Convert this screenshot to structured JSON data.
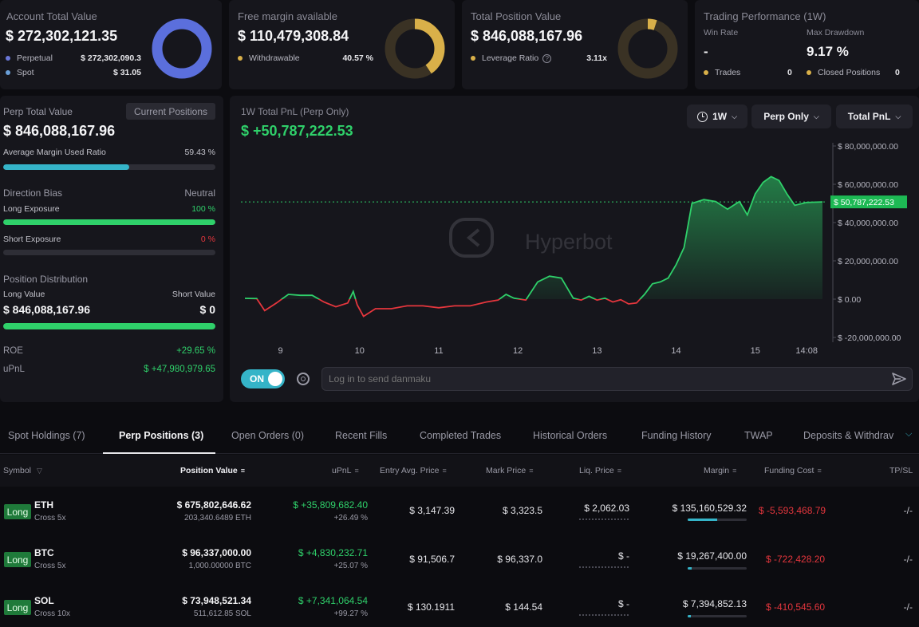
{
  "cards": {
    "account": {
      "title": "Account Total Value",
      "value": "$ 272,302,121.35",
      "rows": [
        {
          "label": "Perpetual",
          "value": "$ 272,302,090.3",
          "color": "#6a77d8"
        },
        {
          "label": "Spot",
          "value": "$ 31.05",
          "color": "#6a9fd8"
        }
      ],
      "donut_color": "#5b6fdc"
    },
    "margin": {
      "title": "Free margin available",
      "value": "$ 110,479,308.84",
      "rows": [
        {
          "label": "Withdrawable",
          "value": "40.57 %",
          "color": "#d9b049"
        }
      ],
      "withdrawable_fraction": 0.4057,
      "donut_color": "#d9b049"
    },
    "position": {
      "title": "Total Position Value",
      "value": "$ 846,088,167.96",
      "rows": [
        {
          "label": "Leverage Ratio",
          "value": "3.11x",
          "color": "#d9b049"
        }
      ],
      "help_icon": "help-circle-icon",
      "fill_fraction": 0.05,
      "donut_color": "#d9b049"
    },
    "performance": {
      "title": "Trading Performance (1W)",
      "win_rate_label": "Win Rate",
      "win_rate_value": "-",
      "drawdown_label": "Max Drawdown",
      "drawdown_value": "9.17 %",
      "trades_label": "Trades",
      "trades_value": "0",
      "closed_label": "Closed Positions",
      "closed_value": "0"
    }
  },
  "left_panel": {
    "perp_total_label": "Perp Total Value",
    "current_positions_button": "Current Positions",
    "perp_total_value": "$ 846,088,167.96",
    "avg_margin_label": "Average Margin Used Ratio",
    "avg_margin_value": "59.43 %",
    "avg_margin_fraction": 0.5943,
    "direction_bias_label": "Direction Bias",
    "direction_bias_value": "Neutral",
    "long_exposure_label": "Long Exposure",
    "long_exposure_value": "100 %",
    "long_exposure_fraction": 1.0,
    "short_exposure_label": "Short Exposure",
    "short_exposure_value": "0 %",
    "short_exposure_fraction": 0.0,
    "distribution_label": "Position Distribution",
    "long_value_label": "Long Value",
    "short_value_label": "Short Value",
    "long_value": "$ 846,088,167.96",
    "short_value": "$ 0",
    "distribution_long_fraction": 1.0,
    "roe_label": "ROE",
    "roe_value": "+29.65 %",
    "upnl_label": "uPnL",
    "upnl_value": "$ +47,980,979.65"
  },
  "chart_panel": {
    "title": "1W Total PnL (Perp Only)",
    "value": "$ +50,787,222.53",
    "dropdowns": {
      "period": "1W",
      "scope": "Perp Only",
      "metric": "Total PnL"
    },
    "clock_icon": "clock-icon",
    "watermark": "Hyperbot",
    "toggle_label": "ON",
    "settings_icon": "settings-icon",
    "danmaku_placeholder": "Log in to send danmaku",
    "send_icon": "send-icon"
  },
  "chart_data": {
    "type": "area",
    "title": "1W Total PnL (Perp Only)",
    "xlabel": "",
    "ylabel": "",
    "ylim": [
      -20000000,
      80000000
    ],
    "y_ticks": [
      "$ 80,000,000.00",
      "$ 60,000,000.00",
      "$ 40,000,000.00",
      "$ 20,000,000.00",
      "$ 0.00",
      "$ -20,000,000.00"
    ],
    "y_tick_values": [
      80000000,
      60000000,
      40000000,
      20000000,
      0,
      -20000000
    ],
    "x_ticks": [
      "9",
      "10",
      "11",
      "12",
      "13",
      "14",
      "15",
      "14:08"
    ],
    "x_tick_values": [
      9,
      10,
      11,
      12,
      13,
      14,
      15,
      15.65
    ],
    "xlim": [
      8.5,
      15.9
    ],
    "current_label": "$ 50,787,222.53",
    "current_value": 50787222.53,
    "positive_color": "#2fd06a",
    "negative_color": "#e5363d",
    "grid": false,
    "x": [
      8.55,
      8.7,
      8.8,
      8.95,
      9.1,
      9.25,
      9.4,
      9.55,
      9.7,
      9.85,
      9.92,
      9.97,
      10.05,
      10.2,
      10.4,
      10.6,
      10.8,
      11.0,
      11.2,
      11.4,
      11.6,
      11.75,
      11.85,
      11.95,
      12.1,
      12.25,
      12.4,
      12.55,
      12.7,
      12.8,
      12.9,
      13.0,
      13.1,
      13.2,
      13.3,
      13.4,
      13.5,
      13.6,
      13.7,
      13.8,
      13.9,
      14.0,
      14.1,
      14.2,
      14.35,
      14.5,
      14.65,
      14.8,
      14.9,
      15.0,
      15.1,
      15.2,
      15.3,
      15.4,
      15.5,
      15.65,
      15.85
    ],
    "y": [
      0.4,
      0.3,
      -6.0,
      -2.0,
      2.5,
      2.0,
      2.0,
      -1.5,
      -4.0,
      -2.0,
      4.0,
      -3.0,
      -9.0,
      -5.0,
      -5.0,
      -3.5,
      -3.5,
      -4.5,
      -3.5,
      -3.5,
      -1.5,
      -0.5,
      2.5,
      0.5,
      -0.5,
      9.0,
      12.0,
      11.0,
      0.5,
      -0.5,
      1.5,
      -0.5,
      0.5,
      -1.5,
      -0.3,
      -2.5,
      -2.0,
      2.5,
      8.0,
      9.0,
      11.0,
      18.0,
      27.0,
      50.0,
      52.0,
      51.0,
      47.0,
      51.0,
      44.0,
      55.0,
      61.0,
      64.0,
      62.0,
      55.0,
      49.0,
      50.5,
      50.8
    ]
  },
  "tabs": [
    {
      "label": "Spot Holdings (7)",
      "active": false
    },
    {
      "label": "Perp Positions (3)",
      "active": true
    },
    {
      "label": "Open Orders (0)",
      "active": false
    },
    {
      "label": "Recent Fills",
      "active": false
    },
    {
      "label": "Completed Trades",
      "active": false
    },
    {
      "label": "Historical Orders",
      "active": false
    },
    {
      "label": "Funding History",
      "active": false
    },
    {
      "label": "TWAP",
      "active": false
    },
    {
      "label": "Deposits & Withdrav",
      "active": false
    }
  ],
  "tab_more_icon": "chevron-down-icon",
  "table": {
    "headers": {
      "symbol": "Symbol",
      "position_value": "Position Value",
      "upnl": "uPnL",
      "entry": "Entry Avg. Price",
      "mark": "Mark Price",
      "liq": "Liq. Price",
      "margin": "Margin",
      "funding": "Funding Cost",
      "tpsl": "TP/SL"
    },
    "filter_icon": "filter-icon",
    "sort_icon": "sort-icon",
    "rows": [
      {
        "side": "Long",
        "symbol": "ETH",
        "leverage": "Cross 5x",
        "position_value": "$ 675,802,646.62",
        "position_size": "203,340.6489 ETH",
        "upnl": "$ +35,809,682.40",
        "upnl_pct": "+26.49 %",
        "entry": "$ 3,147.39",
        "mark": "$ 3,323.5",
        "liq": "$ 2,062.03",
        "margin": "$ 135,160,529.32",
        "margin_fraction": 0.5,
        "funding": "$ -5,593,468.79",
        "tpsl": "-/-"
      },
      {
        "side": "Long",
        "symbol": "BTC",
        "leverage": "Cross 5x",
        "position_value": "$ 96,337,000.00",
        "position_size": "1,000.00000 BTC",
        "upnl": "$ +4,830,232.71",
        "upnl_pct": "+25.07 %",
        "entry": "$ 91,506.7",
        "mark": "$ 96,337.0",
        "liq": "$ -",
        "margin": "$ 19,267,400.00",
        "margin_fraction": 0.07,
        "funding": "$ -722,428.20",
        "tpsl": "-/-"
      },
      {
        "side": "Long",
        "symbol": "SOL",
        "leverage": "Cross 10x",
        "position_value": "$ 73,948,521.34",
        "position_size": "511,612.85 SOL",
        "upnl": "$ +7,341,064.54",
        "upnl_pct": "+99.27 %",
        "entry": "$ 130.1911",
        "mark": "$ 144.54",
        "liq": "$ -",
        "margin": "$ 7,394,852.13",
        "margin_fraction": 0.05,
        "funding": "$ -410,545.60",
        "tpsl": "-/-"
      }
    ]
  }
}
